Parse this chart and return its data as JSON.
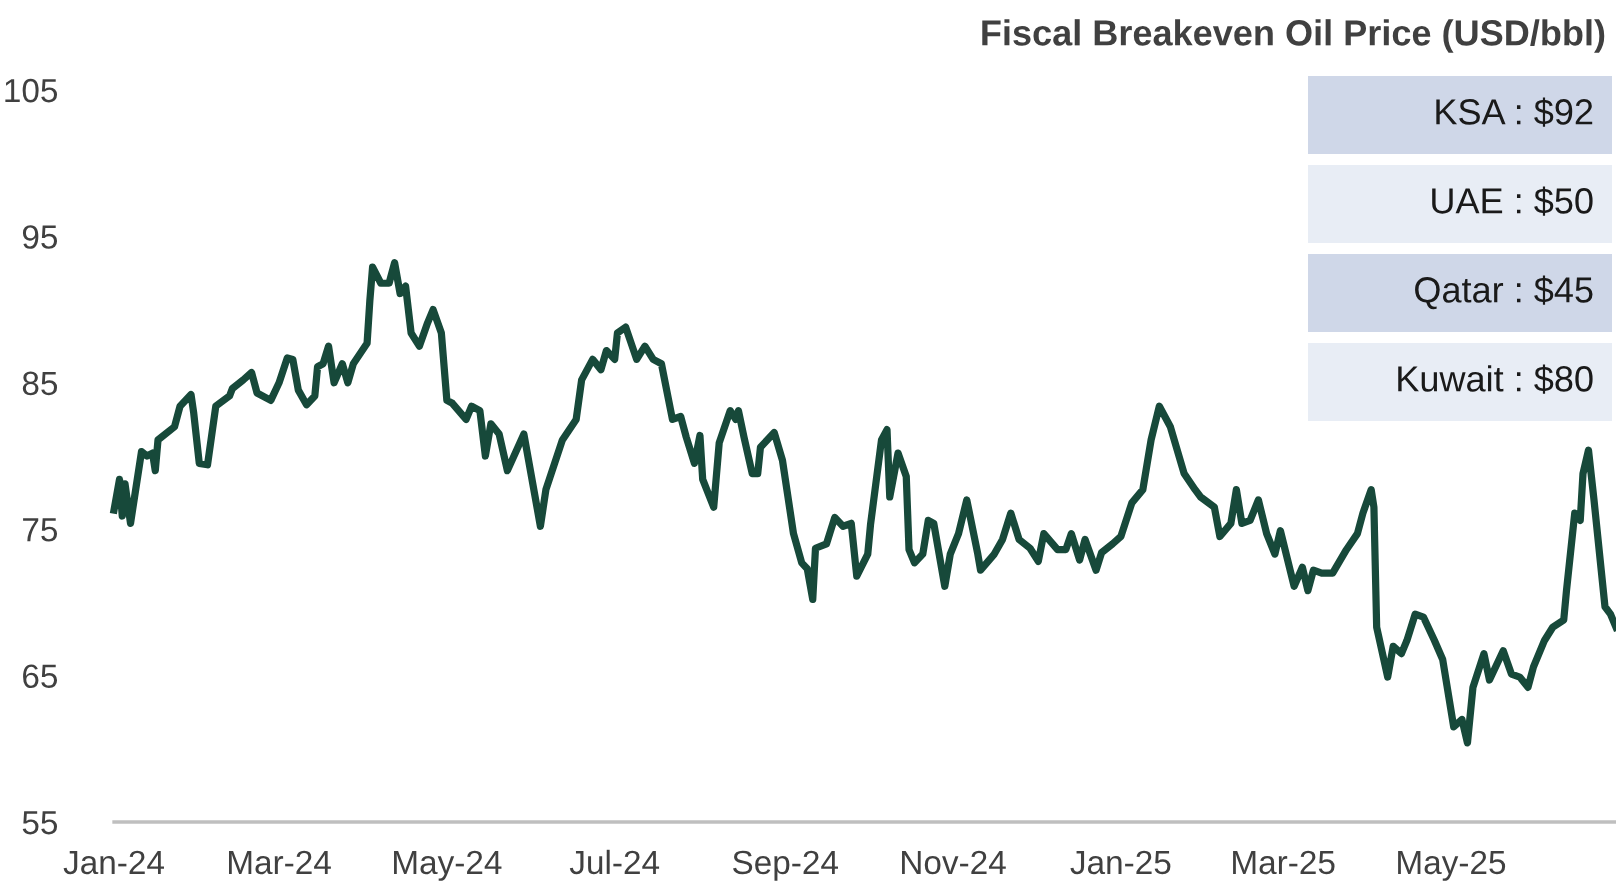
{
  "chart_data": {
    "type": "line",
    "title": "Fiscal Breakeven Oil Price (USD/bbl)",
    "x": [
      "2024-01-01",
      "2024-01-03",
      "2024-01-04",
      "2024-01-05",
      "2024-01-07",
      "2024-01-11",
      "2024-01-13",
      "2024-01-15",
      "2024-01-16",
      "2024-01-17",
      "2024-01-23",
      "2024-01-25",
      "2024-01-29",
      "2024-01-30",
      "2024-02-01",
      "2024-02-04",
      "2024-02-07",
      "2024-02-12",
      "2024-02-13",
      "2024-02-17",
      "2024-02-20",
      "2024-02-21",
      "2024-02-22",
      "2024-02-27",
      "2024-03-01",
      "2024-03-04",
      "2024-03-06",
      "2024-03-08",
      "2024-03-11",
      "2024-03-14",
      "2024-03-15",
      "2024-03-17",
      "2024-03-19",
      "2024-03-21",
      "2024-03-24",
      "2024-03-26",
      "2024-03-28",
      "2024-04-02",
      "2024-04-03",
      "2024-04-04",
      "2024-04-07",
      "2024-04-10",
      "2024-04-12",
      "2024-04-14",
      "2024-04-16",
      "2024-04-18",
      "2024-04-21",
      "2024-04-24",
      "2024-04-26",
      "2024-04-29",
      "2024-05-01",
      "2024-05-03",
      "2024-05-08",
      "2024-05-10",
      "2024-05-13",
      "2024-05-15",
      "2024-05-17",
      "2024-05-20",
      "2024-05-23",
      "2024-05-29",
      "2024-06-04",
      "2024-06-06",
      "2024-06-12",
      "2024-06-17",
      "2024-06-19",
      "2024-06-23",
      "2024-06-26",
      "2024-06-28",
      "2024-07-01",
      "2024-07-02",
      "2024-07-05",
      "2024-07-09",
      "2024-07-12",
      "2024-07-15",
      "2024-07-18",
      "2024-07-22",
      "2024-07-25",
      "2024-07-27",
      "2024-07-30",
      "2024-08-01",
      "2024-08-02",
      "2024-08-06",
      "2024-08-08",
      "2024-08-12",
      "2024-08-14",
      "2024-08-15",
      "2024-08-17",
      "2024-08-20",
      "2024-08-22",
      "2024-08-23",
      "2024-08-28",
      "2024-08-31",
      "2024-09-04",
      "2024-09-07",
      "2024-09-09",
      "2024-09-11",
      "2024-09-12",
      "2024-09-16",
      "2024-09-19",
      "2024-09-22",
      "2024-09-25",
      "2024-09-27",
      "2024-10-01",
      "2024-10-02",
      "2024-10-06",
      "2024-10-08",
      "2024-10-09",
      "2024-10-12",
      "2024-10-15",
      "2024-10-16",
      "2024-10-18",
      "2024-10-21",
      "2024-10-23",
      "2024-10-25",
      "2024-10-29",
      "2024-10-31",
      "2024-11-03",
      "2024-11-06",
      "2024-11-10",
      "2024-11-11",
      "2024-11-16",
      "2024-11-19",
      "2024-11-22",
      "2024-11-25",
      "2024-11-29",
      "2024-12-02",
      "2024-12-04",
      "2024-12-09",
      "2024-12-12",
      "2024-12-14",
      "2024-12-17",
      "2024-12-19",
      "2024-12-23",
      "2024-12-25",
      "2024-12-29",
      "2025-01-01",
      "2025-01-05",
      "2025-01-09",
      "2025-01-12",
      "2025-01-15",
      "2025-01-19",
      "2025-01-24",
      "2025-01-28",
      "2025-01-30",
      "2025-02-04",
      "2025-02-06",
      "2025-02-10",
      "2025-02-12",
      "2025-02-14",
      "2025-02-17",
      "2025-02-20",
      "2025-02-23",
      "2025-02-26",
      "2025-02-28",
      "2025-03-05",
      "2025-03-08",
      "2025-03-10",
      "2025-03-12",
      "2025-03-15",
      "2025-03-19",
      "2025-03-24",
      "2025-03-28",
      "2025-03-30",
      "2025-04-02",
      "2025-04-03",
      "2025-04-04",
      "2025-04-08",
      "2025-04-10",
      "2025-04-13",
      "2025-04-15",
      "2025-04-18",
      "2025-04-21",
      "2025-04-25",
      "2025-04-28",
      "2025-05-02",
      "2025-05-05",
      "2025-05-07",
      "2025-05-09",
      "2025-05-13",
      "2025-05-15",
      "2025-05-20",
      "2025-05-23",
      "2025-05-26",
      "2025-05-29",
      "2025-05-31",
      "2025-06-04",
      "2025-06-07",
      "2025-06-11",
      "2025-06-12",
      "2025-06-15",
      "2025-06-17",
      "2025-06-18",
      "2025-06-20",
      "2025-06-22",
      "2025-06-26",
      "2025-06-28",
      "2025-06-30"
    ],
    "series": [
      {
        "color": "#17493a",
        "values": [
          76.3,
          78.4,
          75.9,
          78.1,
          75.4,
          80.3,
          80.0,
          80.2,
          79.0,
          81.1,
          82.0,
          83.4,
          84.2,
          82.9,
          79.5,
          79.4,
          83.4,
          84.1,
          84.6,
          85.2,
          85.7,
          85.0,
          84.3,
          83.8,
          85.0,
          86.7,
          86.6,
          84.5,
          83.5,
          84.1,
          86.1,
          86.3,
          87.5,
          85.0,
          86.3,
          85.0,
          86.3,
          87.7,
          90.6,
          92.9,
          91.8,
          91.8,
          93.2,
          91.1,
          91.6,
          88.4,
          87.5,
          89.1,
          90.0,
          88.4,
          83.8,
          83.6,
          82.5,
          83.4,
          83.1,
          80.0,
          82.2,
          81.5,
          79.0,
          81.5,
          75.2,
          77.7,
          81.1,
          82.5,
          85.2,
          86.6,
          85.9,
          87.2,
          86.6,
          88.4,
          88.8,
          86.6,
          87.5,
          86.6,
          86.3,
          82.5,
          82.7,
          81.3,
          79.5,
          81.4,
          78.4,
          76.5,
          80.9,
          83.1,
          82.5,
          83.1,
          81.3,
          78.8,
          78.8,
          80.6,
          81.6,
          79.7,
          74.7,
          72.7,
          72.3,
          70.2,
          73.7,
          74.0,
          75.8,
          75.2,
          75.4,
          71.8,
          73.3,
          75.3,
          81.1,
          81.8,
          77.2,
          80.2,
          78.6,
          73.6,
          72.7,
          73.3,
          75.6,
          75.4,
          71.1,
          73.3,
          74.7,
          77.0,
          73.3,
          72.2,
          73.3,
          74.3,
          76.1,
          74.3,
          73.7,
          72.8,
          74.7,
          73.6,
          73.6,
          74.7,
          72.9,
          74.3,
          72.2,
          73.4,
          74.0,
          74.5,
          76.8,
          77.7,
          81.1,
          83.4,
          82.0,
          78.8,
          77.7,
          77.2,
          76.5,
          74.5,
          75.4,
          77.7,
          75.4,
          75.6,
          77.0,
          74.7,
          73.3,
          74.9,
          71.1,
          72.4,
          70.8,
          72.2,
          72.0,
          72.0,
          73.6,
          74.7,
          76.1,
          77.7,
          76.5,
          68.3,
          64.9,
          67.0,
          66.5,
          67.4,
          69.2,
          69.0,
          67.4,
          66.1,
          61.5,
          62.0,
          60.4,
          64.2,
          66.5,
          64.7,
          66.7,
          65.1,
          64.9,
          64.2,
          65.6,
          67.4,
          68.3,
          68.8,
          70.8,
          76.1,
          75.6,
          78.8,
          80.4,
          77.0,
          69.7,
          69.2,
          68.3
        ]
      }
    ],
    "xlim": [
      "2024-01-01",
      "2025-06-30"
    ],
    "xticks": [
      {
        "value": "2024-01-01",
        "label": "Jan-24"
      },
      {
        "value": "2024-03-01",
        "label": "Mar-24"
      },
      {
        "value": "2024-05-01",
        "label": "May-24"
      },
      {
        "value": "2024-07-01",
        "label": "Jul-24"
      },
      {
        "value": "2024-09-01",
        "label": "Sep-24"
      },
      {
        "value": "2024-11-01",
        "label": "Nov-24"
      },
      {
        "value": "2025-01-01",
        "label": "Jan-25"
      },
      {
        "value": "2025-03-01",
        "label": "Mar-25"
      },
      {
        "value": "2025-05-01",
        "label": "May-25"
      }
    ],
    "ylim": [
      55,
      105
    ],
    "yticks": [
      55,
      65,
      75,
      85,
      95,
      105
    ],
    "grid": false,
    "marker": "none",
    "line_style": "solid",
    "annotations": [
      "KSA : $92",
      "UAE : $50",
      "Qatar : $45",
      "Kuwait : $80"
    ]
  }
}
